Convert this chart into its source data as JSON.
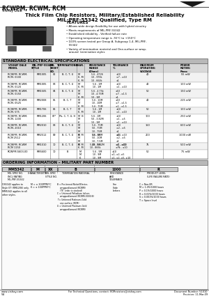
{
  "title_model": "RCWPM, RCWM, RCM",
  "title_company": "Vishay Dale",
  "title_main": "Thick Film Chip Resistors, Military/Established Reliability",
  "title_sub": "MIL-PRF-55342 Qualified, Type RM",
  "features_title": "FEATURES",
  "features": [
    "• Allows wide design flexibility for use with hybrid circuitry",
    "• Meets requirements of MIL-PRF-55342",
    "• Established reliability - Verified failure rate",
    "• Operating temperature range is -55°C to +150°C",
    "• 100% screen tested per Group A, Subgroup 1-4, MIL-PRF-\n   55342",
    "• Variety of termination material and One-surface or wrap-\n   around  termination styles"
  ],
  "spec_title": "STANDARD ELECTRICAL SPECIFICATIONS",
  "spec_headers": [
    "VISHAY DALE\nMODEL",
    "MIL-PRF-55342\nSTYLE",
    "MIL\nSHEET\nNO.",
    "TERMINATIONS",
    "CHAR.",
    "RESISTANCE\nRANGE\n(Ohms)",
    "TOLERANCE\n%",
    "MAXIMUM\nOPERATING\nVOLTAGE",
    "POWER\nRATING\nPmax"
  ],
  "spec_rows": [
    [
      "RCWPM, RCWM,\nRCM, 0100",
      "RM1005",
      "02",
      "B, C, T, U",
      "M\nK, M\nK, M",
      "5.6 - 4726\n10 - 976k\n10 - 664k",
      "±10\n±7 - ±10\n±1",
      "40",
      "55 mW"
    ],
    [
      "RCWPM, RCWM,\nRCM, 0120",
      "RM1005",
      "03",
      "B, C, T, U",
      "M\nK, M",
      "5.6 - 1M\n10 - 1M",
      "±10\n±1 - ±10",
      "40",
      "100 mW"
    ],
    [
      "RCWPM, RCWM,\nRCM, 0150",
      "RM1505",
      "04",
      "B, C, T, U",
      "M\nM\nK, M",
      "5.6 - 4.75k\n10 - 4.75M\n10 - 1M",
      "±10\n±7 - ±1.5\n±1",
      "50",
      "150 mW"
    ],
    [
      "RCWPM, RCWM,\nRCM, 0525",
      "RM2008",
      "05",
      "B, C, T",
      "M\nM\nK, M",
      "5.6 - 10M\n10 - 10M\n5.6 - 75M",
      "±10\n±7 - ±1.5\n±1 - ±1.5",
      "40",
      "225 mW"
    ],
    [
      "RCWPM, RCWM,\nRCM, 575",
      "RM1706",
      "06",
      "B, C, T",
      "M\nK, M",
      "5.6 - 1M\n10 - 1M",
      "±10\n±1 - ±10",
      "50",
      "100 mW"
    ],
    [
      "RCWPM, RCWM,\nRCM, 1200",
      "RM1206",
      "07*",
      "Pb, C, T, U, H",
      "M  B\nM\nK",
      "5.6 - 1M\n50 - 3.82M\n10 - 1M",
      "±10\n±1 - ±5\n±1 - ±10",
      "100",
      "250 mW"
    ],
    [
      "RCWPM, RCWM,\nRCM, 2010",
      "RM2010",
      "08",
      "B, C, T, U",
      "M\nM\nM\nK, M",
      "5.6 - 75M\n50 - 75M\n10 - 75M\n10 - 9M",
      "±10\n±2 - ±5\n±1\n±1 - ±10",
      "150",
      "600 mW"
    ],
    [
      "RCWPM, RCWM,\nRCM 2512",
      "RM2512",
      "09",
      "B, C, T, U",
      "M\nM\nM\nK, M",
      "5.6 - 10M\n50 - 10M\n10 - 7.5M\n10 - 9M",
      "±10\n±2 - ±5\n±1\n±1 - ±10",
      "200",
      "1000 mW"
    ],
    [
      "RCWPM, RCWM\nRCM 1150",
      "RM1010",
      "10",
      "B, C, T, U",
      "M\nK, M",
      "5.49 - 5.62M\n10 - 866k",
      "±1 - ±10\n±Pk - ±10",
      "75",
      "500 mW"
    ],
    [
      "RCWPM-5603-00",
      "RM5600",
      "10",
      "B",
      "M\nM\nK",
      "5.6 - 9M\n10 - 9M\n10 - 9M",
      "±10\n±1, ±2, ±5\n±1, ±2, ±5, ±10",
      "50",
      "75 mW"
    ]
  ],
  "order_title": "ORDERING INFORMATION – MILITARY PART NUMBER",
  "order_fields": [
    "MM5342",
    "M",
    "XX",
    "B",
    "1000",
    "R"
  ],
  "order_labels": [
    "MIL SPEC NO.\nINCL RATING\nMIL-PRF-55342",
    "CHARACTERISTIC",
    "MIL SPEC\nSTYLE NO.",
    "TERMINATION MATERIAL",
    "RESISTANCE\nAND\nTOLERANCE",
    "PRODUCT LEVEL\n(LIFE FAILURE RATE)"
  ],
  "order_notes_left": [
    "DS5342 applies to\nStyle 07 (RM1206) only.",
    "MM5342 applies to all\nother styles."
  ],
  "order_char": [
    "M = ± 300PPM/°C",
    "K = ± 100PPM/°C"
  ],
  "order_term": [
    "B = Pre-tinned Nickel/Electro-\n    wrapped/wound (RCWM)\n    (\"B\" order is stocked)",
    "C = Untinned Palladium (silver,\n    wrapped/wound (RCWM-0000-B)",
    "T = Untinned Platinum-Gold\n    one-surface (RCM)",
    "U = Untinned Platinum-Gold\n    wrapped/wound (RCWM)"
  ],
  "order_res": "See\nCode\nLetters",
  "order_prod": [
    "C = Non-ER",
    "M = 1.0%/1000 hours",
    "P = 0.1%/1000 hours",
    "R = 0.01%/1000 hours",
    "S = 0.001%/1000 hours",
    "T = Space level"
  ],
  "footer_left": "www.vishay.com",
  "footer_mid": "For Technical Questions, contact: KOResistors@vishay.com",
  "footer_doc": "Document Number: 51010",
  "footer_rev": "Revision: 11-Mar-09",
  "footer_page": "54"
}
